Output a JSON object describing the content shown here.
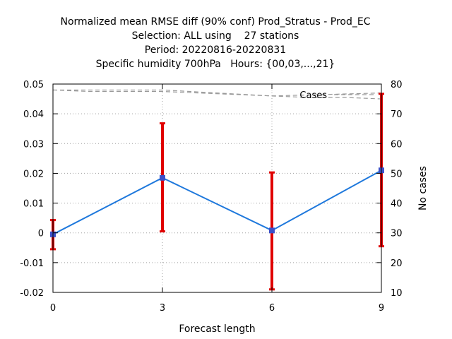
{
  "chart_data": {
    "type": "line",
    "title_lines": [
      "Normalized mean RMSE diff (90% conf) Prod_Stratus - Prod_EC",
      "Selection: ALL using    27 stations",
      "Period: 20220816-20220831",
      "Specific humidity 700hPa   Hours: {00,03,...,21}"
    ],
    "xlabel": "Forecast length",
    "ylabel": "",
    "y2label": "No cases",
    "x": [
      0,
      3,
      6,
      9
    ],
    "xlim": [
      0,
      9
    ],
    "xticks": [
      0,
      3,
      6,
      9
    ],
    "xtick_labels": [
      "0",
      "3",
      "6",
      "9"
    ],
    "ylim": [
      -0.02,
      0.05
    ],
    "yticks": [
      -0.02,
      -0.01,
      0,
      0.01,
      0.02,
      0.03,
      0.04,
      0.05
    ],
    "ytick_labels": [
      "-0.02",
      "-0.01",
      "0",
      "0.01",
      "0.02",
      "0.03",
      "0.04",
      "0.05"
    ],
    "y2lim": [
      10,
      80
    ],
    "y2ticks": [
      10,
      20,
      30,
      40,
      50,
      60,
      70,
      80
    ],
    "y2tick_labels": [
      "10",
      "20",
      "30",
      "40",
      "50",
      "60",
      "70",
      "80"
    ],
    "grid": true,
    "series": [
      {
        "name": "",
        "axis": "left",
        "style": "line-with-errorbars",
        "color": "#1e78dc",
        "marker_color": "#3c50c8",
        "y": [
          -0.0005,
          0.0185,
          0.0008,
          0.021
        ],
        "error_low": [
          -0.0055,
          0.0005,
          -0.019,
          -0.0045
        ],
        "error_high": [
          0.0043,
          0.0368,
          0.0203,
          0.0467
        ],
        "error_color": "#e00000"
      },
      {
        "name": "Cases",
        "axis": "right",
        "style": "dashed",
        "color": "#999999",
        "x": [
          0,
          1,
          2,
          3,
          4,
          5,
          6,
          7,
          8,
          9
        ],
        "y": [
          78,
          77.5,
          77.5,
          77.5,
          77,
          76.5,
          76,
          75.5,
          75.5,
          75
        ]
      },
      {
        "name": "Cases",
        "axis": "right",
        "style": "dashed",
        "color": "#999999",
        "x": [
          0,
          3,
          6,
          9
        ],
        "y": [
          78,
          78,
          76,
          77
        ]
      }
    ],
    "legend": {
      "label": "Cases",
      "placement": "top-right"
    }
  }
}
